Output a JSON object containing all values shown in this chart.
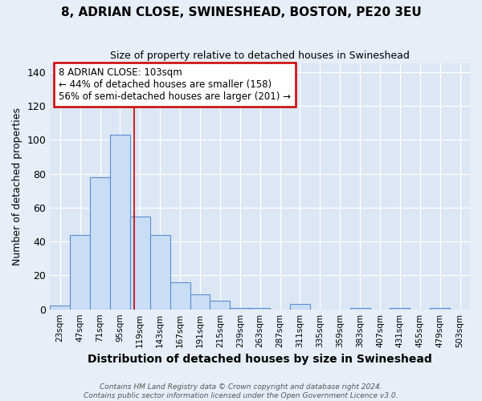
{
  "title": "8, ADRIAN CLOSE, SWINESHEAD, BOSTON, PE20 3EU",
  "subtitle": "Size of property relative to detached houses in Swineshead",
  "xlabel": "Distribution of detached houses by size in Swineshead",
  "ylabel": "Number of detached properties",
  "footer_line1": "Contains HM Land Registry data © Crown copyright and database right 2024.",
  "footer_line2": "Contains public sector information licensed under the Open Government Licence v3.0.",
  "bins": [
    "23sqm",
    "47sqm",
    "71sqm",
    "95sqm",
    "119sqm",
    "143sqm",
    "167sqm",
    "191sqm",
    "215sqm",
    "239sqm",
    "263sqm",
    "287sqm",
    "311sqm",
    "335sqm",
    "359sqm",
    "383sqm",
    "407sqm",
    "431sqm",
    "455sqm",
    "479sqm",
    "503sqm"
  ],
  "values": [
    2,
    44,
    78,
    103,
    55,
    44,
    16,
    9,
    5,
    1,
    1,
    0,
    3,
    0,
    0,
    1,
    0,
    1,
    0,
    1,
    0
  ],
  "bar_color": "#c9ddf5",
  "bar_edge_color": "#5b8fd4",
  "vline_x_data": 3.7,
  "vline_color": "#cc0000",
  "annotation_text": "8 ADRIAN CLOSE: 103sqm\n← 44% of detached houses are smaller (158)\n56% of semi-detached houses are larger (201) →",
  "annotation_box_color": "white",
  "annotation_box_edge_color": "#cc0000",
  "ylim": [
    0,
    145
  ],
  "background_color": "#e8eef8",
  "plot_bg_color": "#dce6f5"
}
